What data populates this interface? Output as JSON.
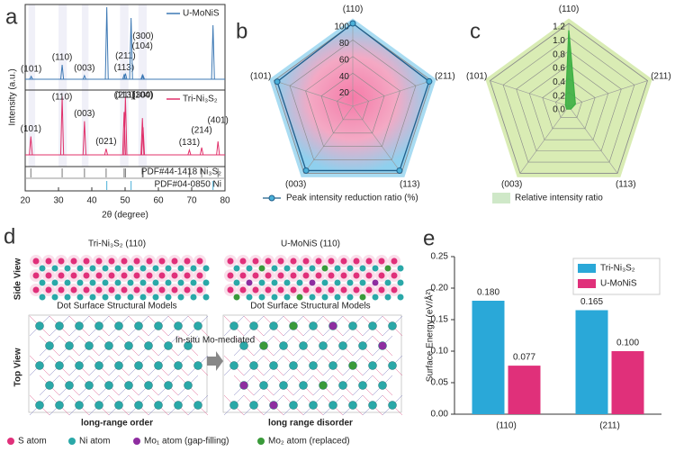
{
  "chart_data": [
    {
      "type": "xrd",
      "panel": "a",
      "ylabel": "Intensity (a.u.)",
      "xlabel": "2θ (degree)",
      "xlim": [
        20,
        80
      ],
      "xticks": [
        20,
        30,
        40,
        50,
        60,
        70,
        80
      ],
      "ylim": [
        0,
        100
      ],
      "series": [
        {
          "name": "U-MoNiS",
          "color": "#3c78b4",
          "x": [
            21.8,
            31.1,
            37.8,
            44.5,
            49.7,
            50.1,
            51.8,
            55.2,
            55.4,
            76.4
          ],
          "values": [
            4,
            20,
            5,
            100,
            6,
            8,
            85,
            6,
            5,
            75
          ],
          "peak_labels": [
            "(101)",
            "(110)",
            "(003)",
            null,
            "(113)",
            "(211)",
            null,
            "(104)",
            "(300)",
            null
          ]
        },
        {
          "name": "Tri-Ni₃S₂",
          "color": "#e0306a",
          "x": [
            21.7,
            31.1,
            37.8,
            44.3,
            49.7,
            50.1,
            55.2,
            55.4,
            69.3,
            73.0,
            77.9
          ],
          "values": [
            30,
            95,
            55,
            10,
            70,
            95,
            60,
            45,
            8,
            12,
            22
          ],
          "peak_labels": [
            "(101)",
            "(110)",
            "(003)",
            "(021)",
            "(113)",
            "(211)",
            "(104)",
            "(300)",
            "(131)",
            "(214)",
            "(401)"
          ]
        }
      ],
      "references": [
        {
          "name": "PDF#44-1418  Ni₃S₂",
          "color": "#777777",
          "x": [
            21.7,
            31.1,
            37.8,
            44.3,
            49.7,
            50.1,
            55.2,
            55.4,
            69.3,
            73.0,
            77.9
          ]
        },
        {
          "name": "PDF#04-0850  Ni",
          "color": "#4ab0d8",
          "x": [
            44.5,
            51.8,
            76.4
          ]
        }
      ]
    },
    {
      "type": "radar",
      "panel": "b",
      "categories": [
        "(110)",
        "(211)",
        "(113)",
        "(003)",
        "(101)"
      ],
      "values": [
        100,
        97,
        96,
        96,
        96
      ],
      "rlim": [
        0,
        100
      ],
      "rticks": [
        20,
        40,
        60,
        80,
        100
      ],
      "color": "#1f5f8b",
      "legend": "Peak intensity reduction ratio (%)"
    },
    {
      "type": "radar",
      "panel": "c",
      "categories": [
        "(110)",
        "(211)",
        "(113)",
        "(003)",
        "(101)"
      ],
      "values": [
        1.1,
        0.1,
        0.05,
        0.05,
        0.05
      ],
      "rlim": [
        0,
        1.2
      ],
      "rticks": [
        {
          "value": 0,
          "label": "0.0"
        },
        0.2,
        0.4,
        0.6,
        0.8,
        {
          "value": 1,
          "label": "1.0"
        },
        1.2
      ],
      "color": "#3cb043",
      "legend": "Relative intensity ratio"
    },
    {
      "type": "bar",
      "panel": "e",
      "ylabel": "Surface Energy (eV/Å²)",
      "categories": [
        "(110)",
        "(211)"
      ],
      "series": [
        {
          "name": "Tri-Ni₃S₂",
          "color": "#2aa8d8",
          "values": [
            0.18,
            0.165
          ],
          "value_labels": [
            "0.180",
            "0.165"
          ]
        },
        {
          "name": "U-MoNiS",
          "color": "#e0307a",
          "values": [
            0.077,
            0.1
          ],
          "value_labels": [
            "0.077",
            "0.100"
          ]
        }
      ],
      "ylim": [
        0,
        0.25
      ],
      "yticks": [
        {
          "value": 0,
          "label": "0.00"
        },
        {
          "value": 0.05,
          "label": "0.05"
        },
        {
          "value": 0.1,
          "label": "0.10"
        },
        {
          "value": 0.15,
          "label": "0.15"
        },
        {
          "value": 0.2,
          "label": "0.20"
        },
        {
          "value": 0.25,
          "label": "0.25"
        }
      ],
      "legend_position": "upper right"
    }
  ],
  "panel_d": {
    "panel": "d",
    "side_view": "Side View",
    "top_view": "Top View",
    "left_title": "Tri-Ni₃S₂ (110)",
    "right_title": "U-MoNiS (110)",
    "left_model": "Dot Surface Structural Models",
    "right_model": "Dot Surface Structural Models",
    "arrow_text": "In-situ Mo-mediated",
    "left_caption": "long-range order",
    "right_caption": "long range disorder",
    "legend": [
      "S atom",
      "Ni atom",
      "Mo₁ atom (gap-filling)",
      "Mo₂ atom (replaced)"
    ]
  }
}
